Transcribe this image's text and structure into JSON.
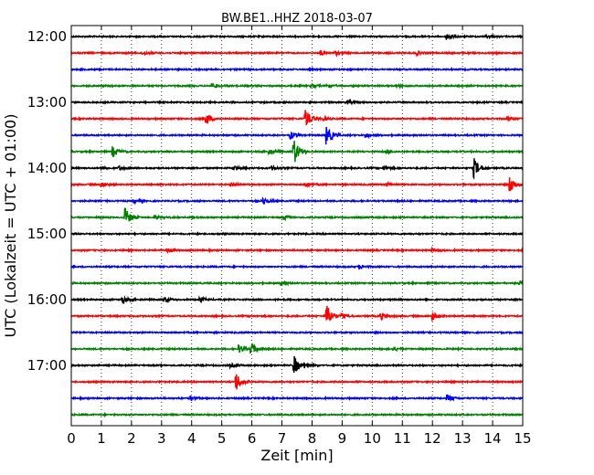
{
  "chart_data": {
    "type": "line",
    "title": "BW.BE1..HHZ 2018-03-07",
    "xlabel": "Zeit  [min]",
    "ylabel": "UTC (Lokalzeit = UTC + 01:00)",
    "xlim": [
      0,
      15
    ],
    "x_ticks": [
      "0",
      "1",
      "2",
      "3",
      "4",
      "5",
      "6",
      "7",
      "8",
      "9",
      "10",
      "11",
      "12",
      "13",
      "14",
      "15"
    ],
    "y_ticks": [
      "12:00",
      "13:00",
      "14:00",
      "15:00",
      "16:00",
      "17:00"
    ],
    "grid": "vertical dotted",
    "trace_minutes_per_line": 15,
    "trace_colors": [
      "#000000",
      "#ff0000",
      "#0000ff",
      "#008000"
    ],
    "traces": [
      {
        "start": "12:00",
        "events": [
          {
            "x": 12.5,
            "amp": 0.55
          },
          {
            "x": 13.8,
            "amp": 0.3
          }
        ]
      },
      {
        "start": "12:15",
        "events": [
          {
            "x": 2.4,
            "amp": 0.3
          },
          {
            "x": 8.3,
            "amp": 0.45
          },
          {
            "x": 8.8,
            "amp": 0.35
          },
          {
            "x": 11.5,
            "amp": 0.3
          }
        ]
      },
      {
        "start": "12:30",
        "events": []
      },
      {
        "start": "12:45",
        "events": [
          {
            "x": 4.7,
            "amp": 0.3
          },
          {
            "x": 8.0,
            "amp": 0.3
          },
          {
            "x": 8.5,
            "amp": 0.35
          },
          {
            "x": 10.8,
            "amp": 0.25
          }
        ]
      },
      {
        "start": "13:00",
        "events": [
          {
            "x": 9.2,
            "amp": 0.3
          }
        ]
      },
      {
        "start": "13:15",
        "events": [
          {
            "x": 4.5,
            "amp": 1.0
          },
          {
            "x": 7.8,
            "amp": 1.7
          },
          {
            "x": 8.4,
            "amp": 0.4
          },
          {
            "x": 14.5,
            "amp": 0.4
          }
        ]
      },
      {
        "start": "13:30",
        "events": [
          {
            "x": 7.3,
            "amp": 0.6
          },
          {
            "x": 8.5,
            "amp": 1.7
          },
          {
            "x": 9.8,
            "amp": 0.4
          }
        ]
      },
      {
        "start": "13:45",
        "events": [
          {
            "x": 1.4,
            "amp": 0.9
          },
          {
            "x": 6.6,
            "amp": 0.4
          },
          {
            "x": 7.4,
            "amp": 2.4
          },
          {
            "x": 10.5,
            "amp": 0.3
          }
        ]
      },
      {
        "start": "14:00",
        "events": [
          {
            "x": 1.0,
            "amp": 0.3
          },
          {
            "x": 1.6,
            "amp": 0.3
          },
          {
            "x": 5.4,
            "amp": 0.35
          },
          {
            "x": 6.7,
            "amp": 0.3
          },
          {
            "x": 10.4,
            "amp": 0.35
          },
          {
            "x": 13.4,
            "amp": 1.7
          }
        ]
      },
      {
        "start": "14:15",
        "events": [
          {
            "x": 1.0,
            "amp": 0.4
          },
          {
            "x": 5.3,
            "amp": 0.3
          },
          {
            "x": 7.8,
            "amp": 0.3
          },
          {
            "x": 10.5,
            "amp": 0.3
          },
          {
            "x": 14.6,
            "amp": 1.4
          }
        ]
      },
      {
        "start": "14:30",
        "events": [
          {
            "x": 2.1,
            "amp": 0.3
          },
          {
            "x": 6.4,
            "amp": 0.55
          }
        ]
      },
      {
        "start": "14:45",
        "events": [
          {
            "x": 1.8,
            "amp": 1.7
          },
          {
            "x": 2.8,
            "amp": 0.3
          },
          {
            "x": 7.1,
            "amp": 0.3
          }
        ]
      },
      {
        "start": "15:00",
        "events": []
      },
      {
        "start": "15:15",
        "events": [
          {
            "x": 3.2,
            "amp": 0.3
          },
          {
            "x": 12.0,
            "amp": 0.3
          }
        ]
      },
      {
        "start": "15:30",
        "events": [
          {
            "x": 9.6,
            "amp": 0.3
          }
        ]
      },
      {
        "start": "15:45",
        "events": [
          {
            "x": 7.0,
            "amp": 0.3
          },
          {
            "x": 14.9,
            "amp": 0.4
          }
        ]
      },
      {
        "start": "16:00",
        "events": [
          {
            "x": 1.7,
            "amp": 0.6
          },
          {
            "x": 3.1,
            "amp": 0.45
          },
          {
            "x": 4.3,
            "amp": 0.4
          }
        ]
      },
      {
        "start": "16:15",
        "events": [
          {
            "x": 8.5,
            "amp": 2.0
          },
          {
            "x": 9.0,
            "amp": 0.4
          },
          {
            "x": 10.3,
            "amp": 0.6
          },
          {
            "x": 12.0,
            "amp": 0.8
          }
        ]
      },
      {
        "start": "16:30",
        "events": []
      },
      {
        "start": "16:45",
        "events": [
          {
            "x": 5.6,
            "amp": 0.7
          },
          {
            "x": 6.0,
            "amp": 1.0
          },
          {
            "x": 10.7,
            "amp": 0.4
          }
        ]
      },
      {
        "start": "17:00",
        "events": [
          {
            "x": 5.3,
            "amp": 0.3
          },
          {
            "x": 7.4,
            "amp": 1.8
          },
          {
            "x": 7.8,
            "amp": 0.4
          }
        ]
      },
      {
        "start": "17:15",
        "events": [
          {
            "x": 5.5,
            "amp": 1.5
          }
        ]
      },
      {
        "start": "17:30",
        "events": [
          {
            "x": 4.0,
            "amp": 0.3
          },
          {
            "x": 12.5,
            "amp": 0.6
          }
        ]
      },
      {
        "start": "17:45",
        "events": []
      }
    ]
  }
}
